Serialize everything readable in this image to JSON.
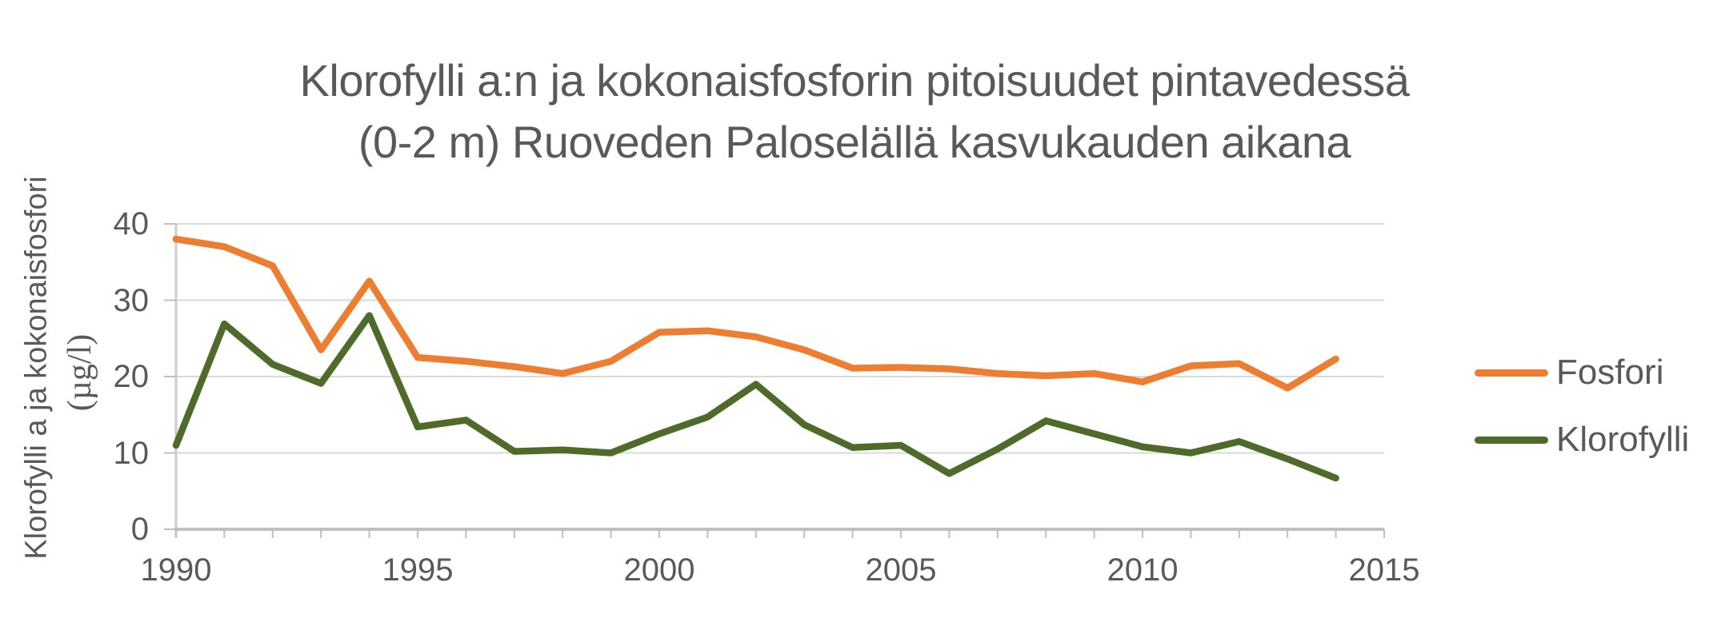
{
  "title": {
    "line1": "Klorofylli a:n ja kokonaisfosforin pitoisuudet pintavedessä",
    "line2": "(0-2 m) Ruoveden Paloselällä kasvukauden aikana"
  },
  "y_axis": {
    "label_line1": "Klorofylli a ja kokonaisfosfori",
    "label_line2": "(µg/l)"
  },
  "colors": {
    "text": "#595959",
    "gridline": "#D9D9D9",
    "axis": "#BFBFBF",
    "background": "#FFFFFF"
  },
  "chart_data": {
    "type": "line",
    "title": "Klorofylli a:n ja kokonaisfosforin pitoisuudet pintavedessä (0-2 m) Ruoveden Paloselällä kasvukauden aikana",
    "xlabel": "",
    "ylabel": "Klorofylli a ja kokonaisfosfori (µg/l)",
    "xlim": [
      1990,
      2015
    ],
    "ylim": [
      0,
      40
    ],
    "xticks": [
      1990,
      1995,
      2000,
      2005,
      2010,
      2015
    ],
    "yticks": [
      0,
      10,
      20,
      30,
      40
    ],
    "grid": "horizontal",
    "legend_position": "right",
    "x": [
      1990,
      1991,
      1992,
      1993,
      1994,
      1995,
      1996,
      1997,
      1998,
      1999,
      2000,
      2001,
      2002,
      2003,
      2004,
      2005,
      2006,
      2007,
      2008,
      2009,
      2010,
      2011,
      2012,
      2013,
      2014
    ],
    "series": [
      {
        "name": "Fosfori",
        "color": "#ED7D31",
        "values": [
          38,
          37,
          34.5,
          23.5,
          32.5,
          22.5,
          22,
          21.3,
          20.4,
          22,
          25.8,
          26,
          25.2,
          23.5,
          21.1,
          21.2,
          21,
          20.4,
          20.1,
          20.4,
          19.3,
          21.4,
          21.7,
          18.5,
          22.3
        ]
      },
      {
        "name": "Klorofylli",
        "color": "#4E6B2A",
        "values": [
          11,
          26.9,
          21.6,
          19.1,
          28,
          13.4,
          14.3,
          10.2,
          10.4,
          10,
          12.5,
          14.7,
          19,
          13.7,
          10.7,
          11,
          7.3,
          10.5,
          14.2,
          12.5,
          10.8,
          10,
          11.5,
          9.2,
          6.7
        ]
      }
    ]
  }
}
